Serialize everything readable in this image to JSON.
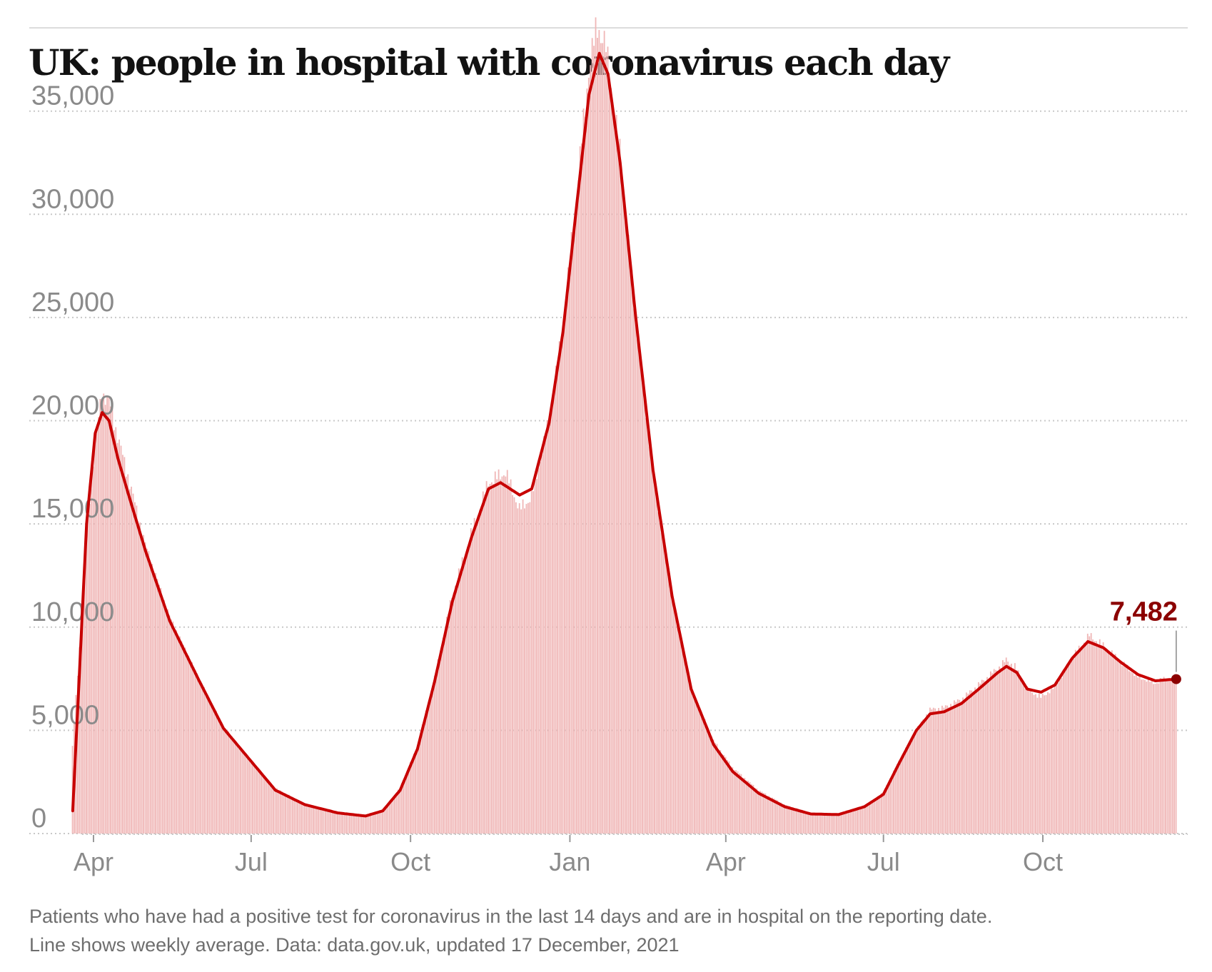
{
  "chart_data": {
    "type": "bar",
    "title": "UK: people in hospital with coronavirus each day",
    "xlabel": "",
    "ylabel": "",
    "ylim": [
      0,
      39000
    ],
    "grid": true,
    "y_ticks": [
      0,
      5000,
      10000,
      15000,
      20000,
      25000,
      30000,
      35000
    ],
    "y_tick_labels": [
      "0",
      "5,000",
      "10,000",
      "15,000",
      "20,000",
      "25,000",
      "30,000",
      "35,000"
    ],
    "x_ticks": [
      {
        "label": "Apr",
        "date": "2020-04-01"
      },
      {
        "label": "Jul",
        "date": "2020-07-01"
      },
      {
        "label": "Oct",
        "date": "2020-10-01"
      },
      {
        "label": "Jan",
        "date": "2021-01-01"
      },
      {
        "label": "Apr",
        "date": "2021-04-01"
      },
      {
        "label": "Jul",
        "date": "2021-07-01"
      },
      {
        "label": "Oct",
        "date": "2021-10-01"
      }
    ],
    "date_range": [
      "2020-03-20",
      "2021-12-17"
    ],
    "series": [
      {
        "name": "Daily patients in hospital",
        "style": "bars",
        "anchors": [
          {
            "date": "2020-03-20",
            "value": 4200
          },
          {
            "date": "2020-03-24",
            "value": 9000
          },
          {
            "date": "2020-03-28",
            "value": 14500
          },
          {
            "date": "2020-04-02",
            "value": 19000
          },
          {
            "date": "2020-04-06",
            "value": 21300
          },
          {
            "date": "2020-04-10",
            "value": 21000
          },
          {
            "date": "2020-04-14",
            "value": 19600
          },
          {
            "date": "2020-04-22",
            "value": 17000
          },
          {
            "date": "2020-05-01",
            "value": 14000
          },
          {
            "date": "2020-05-15",
            "value": 10500
          },
          {
            "date": "2020-06-01",
            "value": 7500
          },
          {
            "date": "2020-06-15",
            "value": 5200
          },
          {
            "date": "2020-07-01",
            "value": 3500
          },
          {
            "date": "2020-07-15",
            "value": 2200
          },
          {
            "date": "2020-08-01",
            "value": 1450
          },
          {
            "date": "2020-08-20",
            "value": 1050
          },
          {
            "date": "2020-09-05",
            "value": 880
          },
          {
            "date": "2020-09-15",
            "value": 1100
          },
          {
            "date": "2020-09-25",
            "value": 2200
          },
          {
            "date": "2020-10-05",
            "value": 4200
          },
          {
            "date": "2020-10-15",
            "value": 7500
          },
          {
            "date": "2020-10-25",
            "value": 11500
          },
          {
            "date": "2020-11-05",
            "value": 14500
          },
          {
            "date": "2020-11-15",
            "value": 17000
          },
          {
            "date": "2020-11-25",
            "value": 17500
          },
          {
            "date": "2020-12-03",
            "value": 15700
          },
          {
            "date": "2020-12-10",
            "value": 16300
          },
          {
            "date": "2020-12-20",
            "value": 20000
          },
          {
            "date": "2020-12-28",
            "value": 24500
          },
          {
            "date": "2021-01-05",
            "value": 31000
          },
          {
            "date": "2021-01-12",
            "value": 37000
          },
          {
            "date": "2021-01-17",
            "value": 39200
          },
          {
            "date": "2021-01-22",
            "value": 38000
          },
          {
            "date": "2021-01-30",
            "value": 33000
          },
          {
            "date": "2021-02-08",
            "value": 25000
          },
          {
            "date": "2021-02-18",
            "value": 17500
          },
          {
            "date": "2021-03-01",
            "value": 11500
          },
          {
            "date": "2021-03-12",
            "value": 7000
          },
          {
            "date": "2021-03-25",
            "value": 4500
          },
          {
            "date": "2021-04-05",
            "value": 3200
          },
          {
            "date": "2021-04-20",
            "value": 2100
          },
          {
            "date": "2021-05-05",
            "value": 1400
          },
          {
            "date": "2021-05-20",
            "value": 1000
          },
          {
            "date": "2021-06-05",
            "value": 950
          },
          {
            "date": "2021-06-20",
            "value": 1300
          },
          {
            "date": "2021-07-01",
            "value": 2000
          },
          {
            "date": "2021-07-10",
            "value": 3500
          },
          {
            "date": "2021-07-20",
            "value": 5000
          },
          {
            "date": "2021-07-28",
            "value": 6000
          },
          {
            "date": "2021-08-05",
            "value": 6100
          },
          {
            "date": "2021-08-15",
            "value": 6500
          },
          {
            "date": "2021-08-25",
            "value": 7200
          },
          {
            "date": "2021-09-05",
            "value": 8000
          },
          {
            "date": "2021-09-10",
            "value": 8400
          },
          {
            "date": "2021-09-15",
            "value": 8100
          },
          {
            "date": "2021-09-22",
            "value": 7000
          },
          {
            "date": "2021-09-30",
            "value": 6600
          },
          {
            "date": "2021-10-08",
            "value": 7100
          },
          {
            "date": "2021-10-18",
            "value": 8500
          },
          {
            "date": "2021-10-28",
            "value": 9600
          },
          {
            "date": "2021-11-05",
            "value": 9100
          },
          {
            "date": "2021-11-15",
            "value": 8300
          },
          {
            "date": "2021-11-25",
            "value": 7600
          },
          {
            "date": "2021-12-05",
            "value": 7300
          },
          {
            "date": "2021-12-12",
            "value": 7500
          },
          {
            "date": "2021-12-17",
            "value": 7482
          }
        ]
      },
      {
        "name": "Weekly average",
        "style": "line",
        "anchors": [
          {
            "date": "2020-03-20",
            "value": 1100
          },
          {
            "date": "2020-03-24",
            "value": 8000
          },
          {
            "date": "2020-03-28",
            "value": 15000
          },
          {
            "date": "2020-04-02",
            "value": 19400
          },
          {
            "date": "2020-04-06",
            "value": 20400
          },
          {
            "date": "2020-04-10",
            "value": 20000
          },
          {
            "date": "2020-04-15",
            "value": 18200
          },
          {
            "date": "2020-04-22",
            "value": 16200
          },
          {
            "date": "2020-05-01",
            "value": 13700
          },
          {
            "date": "2020-05-15",
            "value": 10300
          },
          {
            "date": "2020-06-01",
            "value": 7400
          },
          {
            "date": "2020-06-15",
            "value": 5100
          },
          {
            "date": "2020-07-01",
            "value": 3500
          },
          {
            "date": "2020-07-15",
            "value": 2100
          },
          {
            "date": "2020-08-01",
            "value": 1400
          },
          {
            "date": "2020-08-20",
            "value": 1000
          },
          {
            "date": "2020-09-05",
            "value": 850
          },
          {
            "date": "2020-09-15",
            "value": 1100
          },
          {
            "date": "2020-09-25",
            "value": 2100
          },
          {
            "date": "2020-10-05",
            "value": 4100
          },
          {
            "date": "2020-10-15",
            "value": 7400
          },
          {
            "date": "2020-10-25",
            "value": 11200
          },
          {
            "date": "2020-11-05",
            "value": 14300
          },
          {
            "date": "2020-11-15",
            "value": 16700
          },
          {
            "date": "2020-11-22",
            "value": 17000
          },
          {
            "date": "2020-12-03",
            "value": 16400
          },
          {
            "date": "2020-12-10",
            "value": 16700
          },
          {
            "date": "2020-12-20",
            "value": 19900
          },
          {
            "date": "2020-12-28",
            "value": 24300
          },
          {
            "date": "2021-01-05",
            "value": 30500
          },
          {
            "date": "2021-01-12",
            "value": 35800
          },
          {
            "date": "2021-01-18",
            "value": 37800
          },
          {
            "date": "2021-01-23",
            "value": 36800
          },
          {
            "date": "2021-01-30",
            "value": 32500
          },
          {
            "date": "2021-02-08",
            "value": 25000
          },
          {
            "date": "2021-02-18",
            "value": 17600
          },
          {
            "date": "2021-03-01",
            "value": 11500
          },
          {
            "date": "2021-03-12",
            "value": 7000
          },
          {
            "date": "2021-03-25",
            "value": 4300
          },
          {
            "date": "2021-04-05",
            "value": 3000
          },
          {
            "date": "2021-04-20",
            "value": 1950
          },
          {
            "date": "2021-05-05",
            "value": 1300
          },
          {
            "date": "2021-05-20",
            "value": 950
          },
          {
            "date": "2021-06-05",
            "value": 920
          },
          {
            "date": "2021-06-20",
            "value": 1300
          },
          {
            "date": "2021-07-01",
            "value": 1900
          },
          {
            "date": "2021-07-10",
            "value": 3400
          },
          {
            "date": "2021-07-20",
            "value": 5000
          },
          {
            "date": "2021-07-28",
            "value": 5800
          },
          {
            "date": "2021-08-05",
            "value": 5900
          },
          {
            "date": "2021-08-15",
            "value": 6300
          },
          {
            "date": "2021-08-25",
            "value": 7000
          },
          {
            "date": "2021-09-05",
            "value": 7800
          },
          {
            "date": "2021-09-10",
            "value": 8100
          },
          {
            "date": "2021-09-16",
            "value": 7800
          },
          {
            "date": "2021-09-22",
            "value": 7000
          },
          {
            "date": "2021-09-30",
            "value": 6850
          },
          {
            "date": "2021-10-08",
            "value": 7200
          },
          {
            "date": "2021-10-18",
            "value": 8500
          },
          {
            "date": "2021-10-27",
            "value": 9300
          },
          {
            "date": "2021-11-05",
            "value": 9000
          },
          {
            "date": "2021-11-15",
            "value": 8300
          },
          {
            "date": "2021-11-25",
            "value": 7700
          },
          {
            "date": "2021-12-05",
            "value": 7400
          },
          {
            "date": "2021-12-12",
            "value": 7450
          },
          {
            "date": "2021-12-17",
            "value": 7482
          }
        ]
      }
    ],
    "annotation": {
      "label": "7,482",
      "value": 7482,
      "date": "2021-12-17"
    }
  },
  "footnote": {
    "line1": "Patients who have had a positive test for coronavirus in the last 14 days and are in hospital on the reporting date.",
    "line2": "Line shows weekly average. Data: data.gov.uk, updated 17 December, 2021"
  },
  "colors": {
    "bar": "#f0b7b7",
    "line": "#c70000",
    "annotation": "#8b0000",
    "gridline": "#c8c8c8",
    "tick_label": "#8a8a8a",
    "title": "#121212",
    "footnote": "#6e6e6e"
  }
}
